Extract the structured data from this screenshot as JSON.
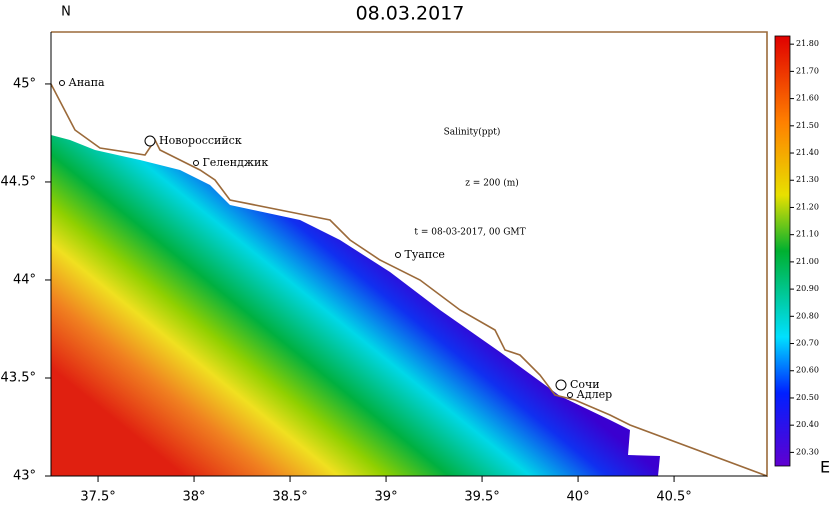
{
  "header": {
    "title": "08.03.2017",
    "north_label": "N",
    "east_label": "E"
  },
  "map": {
    "lon_lim": [
      37.255,
      40.984
    ],
    "lat_lim": [
      43,
      45.265
    ],
    "lon_ticks": [
      {
        "value": 37.5,
        "label": "37.5°"
      },
      {
        "value": 38,
        "label": "38°"
      },
      {
        "value": 38.5,
        "label": "38.5°"
      },
      {
        "value": 39,
        "label": "39°"
      },
      {
        "value": 39.5,
        "label": "39.5°"
      },
      {
        "value": 40,
        "label": "40°"
      },
      {
        "value": 40.5,
        "label": "40.5°"
      }
    ],
    "lat_ticks": [
      {
        "value": 43,
        "label": "43°"
      },
      {
        "value": 43.5,
        "label": "43.5°"
      },
      {
        "value": 44,
        "label": "44°"
      },
      {
        "value": 44.5,
        "label": "44.5°"
      },
      {
        "value": 45,
        "label": "45°"
      }
    ],
    "cities": [
      "Анапа",
      "Новороссийск",
      "Геленджик",
      "Туапсе",
      "Сочи",
      "Адлер"
    ],
    "annotations": [
      "Salinity(ppt)",
      "z = 200 (m)",
      "t = 08-03-2017, 00 GMT"
    ]
  },
  "colorbar": {
    "lim": [
      20.25,
      21.83
    ],
    "ticks": [
      {
        "value": 20.3,
        "label": "20.30"
      },
      {
        "value": 20.4,
        "label": "20.40"
      },
      {
        "value": 20.5,
        "label": "20.50"
      },
      {
        "value": 20.6,
        "label": "20.60"
      },
      {
        "value": 20.7,
        "label": "20.70"
      },
      {
        "value": 20.8,
        "label": "20.80"
      },
      {
        "value": 20.9,
        "label": "20.90"
      },
      {
        "value": 21,
        "label": "21.00"
      },
      {
        "value": 21.1,
        "label": "21.10"
      },
      {
        "value": 21.2,
        "label": "21.20"
      },
      {
        "value": 21.3,
        "label": "21.30"
      },
      {
        "value": 21.4,
        "label": "21.40"
      },
      {
        "value": 21.5,
        "label": "21.50"
      },
      {
        "value": 21.6,
        "label": "21.60"
      },
      {
        "value": 21.7,
        "label": "21.70"
      },
      {
        "value": 21.8,
        "label": "21.80"
      }
    ]
  }
}
